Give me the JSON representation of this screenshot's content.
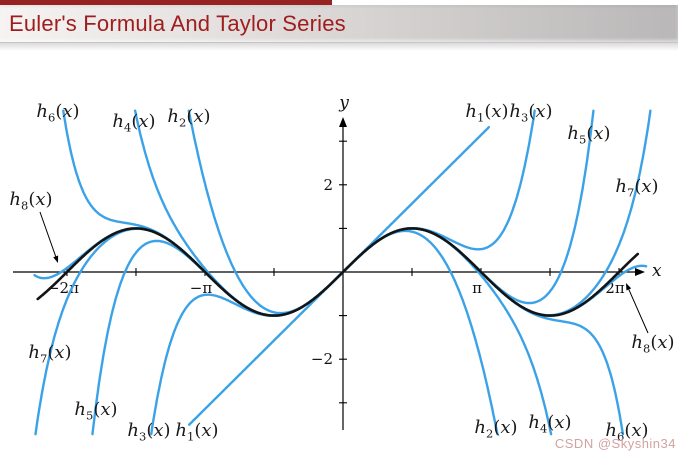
{
  "header": {
    "title": "Euler's Formula And Taylor Series"
  },
  "watermark": {
    "text": "CSDN @Skyshin34"
  },
  "colors": {
    "accent_red": "#962222",
    "title_red": "#a01d1d",
    "curve_blue": "#3ba2e8",
    "curve_black": "#141414",
    "watermark_pink": "#d2a2a2"
  },
  "chart_data": {
    "type": "line",
    "description": "sin(x) in black with Taylor polynomial partial sums h1(x)..h8(x) of the sine series in blue; hn(x) = sum of first n nonzero Taylor terms of sin(x)",
    "x_axis": {
      "label": "x",
      "range_units": [
        -7.1,
        7.2
      ],
      "minor_tick_values": [
        -6.2832,
        -4.7124,
        -3.1416,
        -1.5708,
        1.5708,
        3.1416,
        4.7124,
        6.2832
      ],
      "labeled_ticks": [
        {
          "value": -6.2832,
          "label": "−2π"
        },
        {
          "value": -3.1416,
          "label": "−π"
        },
        {
          "value": 3.1416,
          "label": "π"
        },
        {
          "value": 6.2832,
          "label": "2π"
        }
      ]
    },
    "y_axis": {
      "label": "y",
      "range_units": [
        -3.8,
        3.9
      ],
      "minor_tick_values": [
        -3,
        -2,
        -1,
        1,
        2,
        3
      ],
      "labeled_ticks": [
        {
          "value": 2,
          "label": "2"
        },
        {
          "value": -2,
          "label": "−2"
        }
      ]
    },
    "series": [
      {
        "id": "h1",
        "label": "h1(x)",
        "kind": "taylor",
        "terms": 1,
        "color": "#3ba2e8",
        "x_range": [
          -3.5,
          3.32
        ]
      },
      {
        "id": "h2",
        "label": "h2(x)",
        "kind": "taylor",
        "terms": 2,
        "color": "#3ba2e8",
        "x_range": [
          -7.1,
          7.1
        ]
      },
      {
        "id": "h3",
        "label": "h3(x)",
        "kind": "taylor",
        "terms": 3,
        "color": "#3ba2e8",
        "x_range": [
          -7.1,
          7.1
        ]
      },
      {
        "id": "h4",
        "label": "h4(x)",
        "kind": "taylor",
        "terms": 4,
        "color": "#3ba2e8",
        "x_range": [
          -7.1,
          7.1
        ]
      },
      {
        "id": "h5",
        "label": "h5(x)",
        "kind": "taylor",
        "terms": 5,
        "color": "#3ba2e8",
        "x_range": [
          -7.1,
          7.1
        ]
      },
      {
        "id": "h6",
        "label": "h6(x)",
        "kind": "taylor",
        "terms": 6,
        "color": "#3ba2e8",
        "x_range": [
          -7.1,
          7.1
        ]
      },
      {
        "id": "h7",
        "label": "h7(x)",
        "kind": "taylor",
        "terms": 7,
        "color": "#3ba2e8",
        "x_range": [
          -7.1,
          7.1
        ]
      },
      {
        "id": "h8",
        "label": "h8(x)",
        "kind": "taylor",
        "terms": 8,
        "color": "#3ba2e8",
        "x_range": [
          -7.02,
          6.9
        ]
      },
      {
        "id": "sin",
        "label": "sin(x)",
        "kind": "sin",
        "terms": 0,
        "color": "#141414",
        "x_range": [
          -6.95,
          6.72
        ]
      }
    ],
    "curve_labels": [
      {
        "id": "h6-top-left",
        "base": "h",
        "sub": "6",
        "arg": "x",
        "cx": 58,
        "cy": 112
      },
      {
        "id": "h4-top-left",
        "base": "h",
        "sub": "4",
        "arg": "x",
        "cx": 134,
        "cy": 122
      },
      {
        "id": "h2-top-left",
        "base": "h",
        "sub": "2",
        "arg": "x",
        "cx": 189,
        "cy": 117
      },
      {
        "id": "h1-top-right",
        "base": "h",
        "sub": "1",
        "arg": "x",
        "cx": 487,
        "cy": 112
      },
      {
        "id": "h3-top-right",
        "base": "h",
        "sub": "3",
        "arg": "x",
        "cx": 531,
        "cy": 112
      },
      {
        "id": "h5-top-right",
        "base": "h",
        "sub": "5",
        "arg": "x",
        "cx": 589,
        "cy": 134
      },
      {
        "id": "h7-top-right",
        "base": "h",
        "sub": "7",
        "arg": "x",
        "cx": 637,
        "cy": 187
      },
      {
        "id": "h8-left",
        "base": "h",
        "sub": "8",
        "arg": "x",
        "cx": 31,
        "cy": 200
      },
      {
        "id": "h7-bottom-left",
        "base": "h",
        "sub": "7",
        "arg": "x",
        "cx": 50,
        "cy": 353
      },
      {
        "id": "h5-bottom-left",
        "base": "h",
        "sub": "5",
        "arg": "x",
        "cx": 96,
        "cy": 410
      },
      {
        "id": "h3-bottom-left",
        "base": "h",
        "sub": "3",
        "arg": "x",
        "cx": 149,
        "cy": 431
      },
      {
        "id": "h1-bottom-left",
        "base": "h",
        "sub": "1",
        "arg": "x",
        "cx": 197,
        "cy": 431
      },
      {
        "id": "h2-bottom-right",
        "base": "h",
        "sub": "2",
        "arg": "x",
        "cx": 496,
        "cy": 428
      },
      {
        "id": "h4-bottom-right",
        "base": "h",
        "sub": "4",
        "arg": "x",
        "cx": 550,
        "cy": 423
      },
      {
        "id": "h6-bottom-right",
        "base": "h",
        "sub": "6",
        "arg": "x",
        "cx": 627,
        "cy": 431
      },
      {
        "id": "h8-bottom-right",
        "base": "h",
        "sub": "8",
        "arg": "x",
        "cx": 653,
        "cy": 343
      }
    ],
    "annotation_arrows": [
      {
        "id": "h8-left-arrow",
        "from": [
          40,
          212
        ],
        "to": [
          58,
          263
        ]
      },
      {
        "id": "h8-right-arrow",
        "from": [
          648,
          333
        ],
        "to": [
          626,
          283
        ]
      }
    ]
  }
}
